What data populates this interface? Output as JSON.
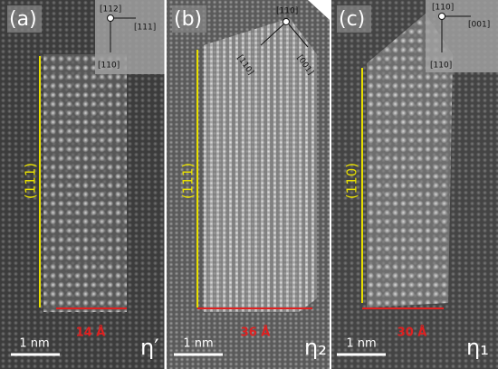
{
  "panels": [
    {
      "label": "(a)",
      "orientation": {
        "top": "[112]",
        "right": "[111]",
        "bottom": "[110]"
      },
      "plane": "(111)",
      "width": "14 Å",
      "scale": "1 nm",
      "phase": "η′"
    },
    {
      "label": "(b)",
      "orientation": {
        "top": "[110]",
        "left": "[110]",
        "right": "[001]"
      },
      "plane": "(111)",
      "width": "36 Å",
      "scale": "1 nm",
      "phase": "η₂"
    },
    {
      "label": "(c)",
      "orientation": {
        "top": "[110]",
        "right": "[001]",
        "bottom": "[110]"
      },
      "plane": "(110)",
      "width": "30 Å",
      "scale": "1 nm",
      "phase": "η₁"
    }
  ]
}
